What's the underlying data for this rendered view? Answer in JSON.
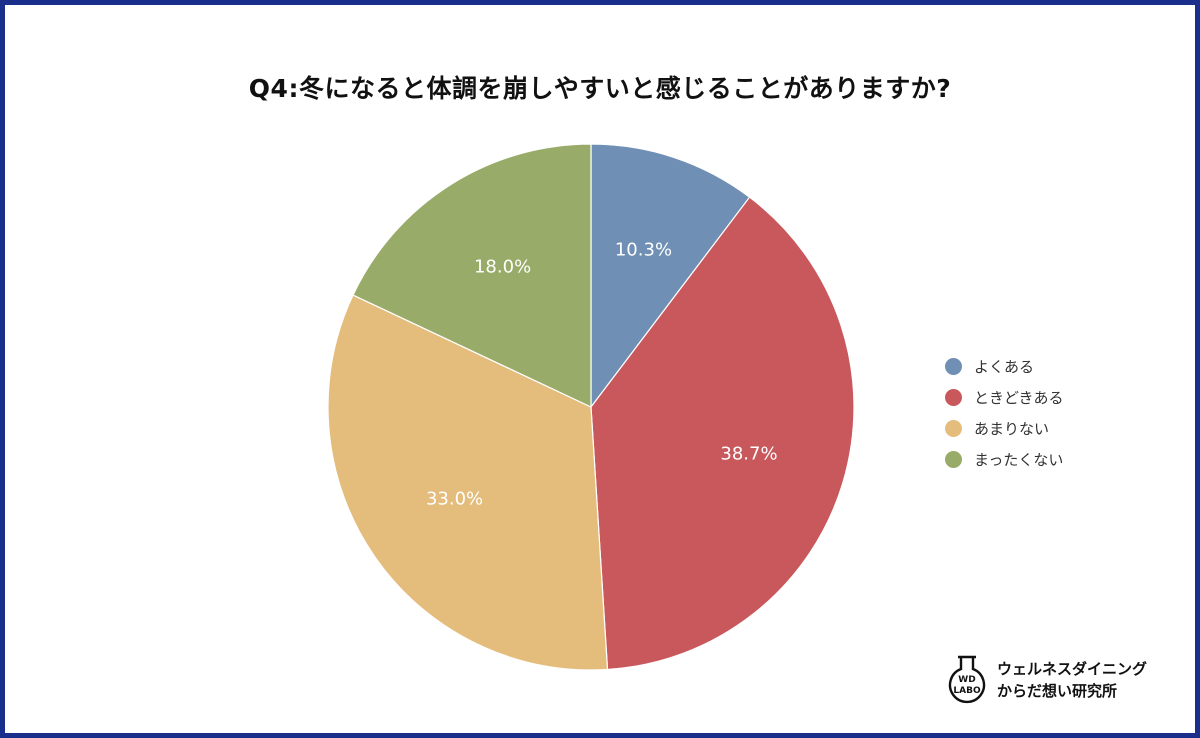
{
  "chart_data": {
    "type": "pie",
    "title": "Q4:冬になると体調を崩しやすいと感じることがありますか?",
    "categories": [
      "よくある",
      "ときどきある",
      "あまりない",
      "まったくない"
    ],
    "values": [
      10.3,
      38.7,
      33.0,
      18.0
    ],
    "value_labels": [
      "10.3%",
      "38.7%",
      "33.0%",
      "18.0%"
    ],
    "colors": [
      "#6f8fb5",
      "#c9585c",
      "#e4bd7c",
      "#99ab68"
    ],
    "start_angle": "top (12 o'clock), clockwise",
    "legend_position": "right"
  },
  "logo": {
    "mark_top": "WD",
    "mark_bottom": "LABO",
    "line1": "ウェルネスダイニング",
    "line2": "からだ想い研究所"
  }
}
